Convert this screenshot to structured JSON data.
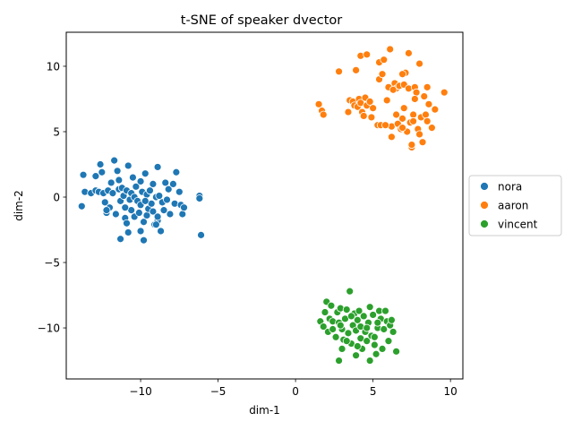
{
  "chart_data": {
    "type": "scatter",
    "title": "t-SNE of speaker dvector",
    "xlabel": "dim-1",
    "ylabel": "dim-2",
    "xlim": [
      -14.8,
      10.8
    ],
    "ylim": [
      -13.9,
      12.6
    ],
    "xticks": [
      -10,
      -5,
      0,
      5,
      10
    ],
    "yticks": [
      -10,
      -5,
      0,
      5,
      10
    ],
    "grid": false,
    "legend_position": "center-right-outside",
    "series": [
      {
        "name": "nora",
        "color": "#1f77b4",
        "points": [
          [
            -13.7,
            1.7
          ],
          [
            -13.8,
            -0.7
          ],
          [
            -13.6,
            0.4
          ],
          [
            -13.2,
            0.3
          ],
          [
            -12.9,
            0.5
          ],
          [
            -12.7,
            0.4
          ],
          [
            -12.9,
            1.6
          ],
          [
            -12.6,
            2.5
          ],
          [
            -12.5,
            1.9
          ],
          [
            -12.4,
            0.3
          ],
          [
            -12.3,
            -0.4
          ],
          [
            -12.2,
            -1.2
          ],
          [
            -12.1,
            0.5
          ],
          [
            -12.0,
            -0.8
          ],
          [
            -11.9,
            1.1
          ],
          [
            -11.8,
            0.3
          ],
          [
            -11.7,
            2.8
          ],
          [
            -11.6,
            -1.3
          ],
          [
            -11.5,
            2.0
          ],
          [
            -11.4,
            0.6
          ],
          [
            -11.4,
            1.3
          ],
          [
            -11.3,
            -0.3
          ],
          [
            -11.2,
            0.7
          ],
          [
            -11.1,
            0.1
          ],
          [
            -11.0,
            -1.6
          ],
          [
            -10.9,
            0.5
          ],
          [
            -10.8,
            2.4
          ],
          [
            -10.7,
            -0.2
          ],
          [
            -10.6,
            0.3
          ],
          [
            -10.6,
            -1.0
          ],
          [
            -10.5,
            1.5
          ],
          [
            -10.4,
            0.0
          ],
          [
            -10.4,
            -1.5
          ],
          [
            -10.3,
            0.8
          ],
          [
            -10.2,
            -0.3
          ],
          [
            -10.1,
            -1.2
          ],
          [
            -10.0,
            1.2
          ],
          [
            -10.0,
            -0.6
          ],
          [
            -9.9,
            0.4
          ],
          [
            -9.8,
            -1.9
          ],
          [
            -9.7,
            1.8
          ],
          [
            -9.6,
            0.2
          ],
          [
            -9.6,
            -1.4
          ],
          [
            -9.5,
            -0.9
          ],
          [
            -9.4,
            0.5
          ],
          [
            -9.3,
            -0.5
          ],
          [
            -9.2,
            -1.1
          ],
          [
            -9.2,
            1.0
          ],
          [
            -9.1,
            -2.1
          ],
          [
            -9.0,
            0.0
          ],
          [
            -8.9,
            2.3
          ],
          [
            -8.9,
            -1.8
          ],
          [
            -8.8,
            0.1
          ],
          [
            -8.7,
            -2.6
          ],
          [
            -8.6,
            -0.4
          ],
          [
            -8.5,
            -1.0
          ],
          [
            -8.4,
            1.1
          ],
          [
            -8.3,
            -0.2
          ],
          [
            -8.2,
            0.6
          ],
          [
            -8.1,
            -1.3
          ],
          [
            -7.9,
            1.0
          ],
          [
            -7.8,
            -0.5
          ],
          [
            -7.7,
            1.9
          ],
          [
            -7.5,
            0.4
          ],
          [
            -7.4,
            -0.6
          ],
          [
            -7.3,
            -1.3
          ],
          [
            -7.2,
            -0.8
          ],
          [
            -6.2,
            0.1
          ],
          [
            -6.2,
            -0.1
          ],
          [
            -6.1,
            -2.9
          ],
          [
            -11.3,
            -3.2
          ],
          [
            -10.8,
            -2.7
          ],
          [
            -9.8,
            -3.3
          ],
          [
            -9.0,
            -2.1
          ],
          [
            -10.0,
            -2.6
          ],
          [
            -12.2,
            -1.0
          ],
          [
            -11.0,
            -0.8
          ],
          [
            -9.7,
            -0.3
          ],
          [
            -8.9,
            -1.5
          ],
          [
            -10.9,
            -2.0
          ]
        ]
      },
      {
        "name": "aaron",
        "color": "#ff7f0e",
        "points": [
          [
            1.5,
            7.1
          ],
          [
            1.7,
            6.6
          ],
          [
            1.8,
            6.3
          ],
          [
            2.8,
            9.6
          ],
          [
            3.4,
            6.5
          ],
          [
            3.5,
            7.4
          ],
          [
            3.7,
            7.3
          ],
          [
            3.8,
            7.0
          ],
          [
            3.9,
            9.7
          ],
          [
            4.0,
            6.9
          ],
          [
            4.1,
            7.5
          ],
          [
            4.2,
            10.8
          ],
          [
            4.2,
            7.2
          ],
          [
            4.3,
            6.5
          ],
          [
            4.4,
            6.2
          ],
          [
            4.5,
            7.6
          ],
          [
            4.6,
            7.0
          ],
          [
            4.6,
            10.9
          ],
          [
            4.8,
            7.3
          ],
          [
            5.0,
            6.8
          ],
          [
            5.3,
            5.5
          ],
          [
            5.4,
            9.0
          ],
          [
            5.4,
            10.3
          ],
          [
            5.5,
            5.5
          ],
          [
            5.6,
            9.4
          ],
          [
            5.7,
            10.5
          ],
          [
            6.0,
            8.4
          ],
          [
            6.1,
            11.3
          ],
          [
            6.2,
            5.4
          ],
          [
            6.2,
            4.6
          ],
          [
            6.4,
            8.7
          ],
          [
            6.5,
            8.3
          ],
          [
            6.6,
            5.6
          ],
          [
            6.7,
            8.5
          ],
          [
            6.8,
            5.2
          ],
          [
            6.9,
            6.0
          ],
          [
            7.0,
            8.6
          ],
          [
            7.1,
            9.5
          ],
          [
            7.2,
            5.0
          ],
          [
            7.3,
            8.3
          ],
          [
            7.3,
            11.0
          ],
          [
            7.4,
            5.7
          ],
          [
            7.5,
            3.8
          ],
          [
            7.5,
            4.0
          ],
          [
            7.6,
            6.3
          ],
          [
            7.7,
            8.4
          ],
          [
            7.8,
            8.0
          ],
          [
            7.9,
            5.2
          ],
          [
            8.0,
            4.8
          ],
          [
            8.0,
            10.2
          ],
          [
            8.1,
            6.1
          ],
          [
            8.2,
            4.2
          ],
          [
            8.3,
            7.7
          ],
          [
            8.4,
            6.3
          ],
          [
            8.5,
            5.8
          ],
          [
            8.6,
            7.1
          ],
          [
            8.8,
            5.3
          ],
          [
            9.0,
            6.7
          ],
          [
            9.6,
            8.0
          ],
          [
            6.9,
            9.4
          ],
          [
            5.9,
            7.4
          ],
          [
            6.3,
            8.2
          ],
          [
            7.0,
            6.8
          ],
          [
            7.7,
            7.5
          ],
          [
            8.5,
            8.4
          ],
          [
            4.9,
            6.1
          ],
          [
            5.8,
            5.5
          ],
          [
            6.9,
            5.3
          ],
          [
            7.6,
            5.8
          ],
          [
            6.5,
            6.3
          ]
        ]
      },
      {
        "name": "vincent",
        "color": "#2ca02c",
        "points": [
          [
            1.6,
            -9.5
          ],
          [
            1.8,
            -9.9
          ],
          [
            1.9,
            -8.8
          ],
          [
            2.0,
            -8.0
          ],
          [
            2.1,
            -10.3
          ],
          [
            2.2,
            -9.3
          ],
          [
            2.3,
            -8.3
          ],
          [
            2.4,
            -9.5
          ],
          [
            2.6,
            -10.7
          ],
          [
            2.7,
            -8.8
          ],
          [
            2.8,
            -9.6
          ],
          [
            2.8,
            -12.5
          ],
          [
            2.9,
            -8.5
          ],
          [
            3.0,
            -10.1
          ],
          [
            3.0,
            -11.6
          ],
          [
            3.1,
            -10.9
          ],
          [
            3.2,
            -9.3
          ],
          [
            3.3,
            -8.6
          ],
          [
            3.4,
            -10.4
          ],
          [
            3.5,
            -7.2
          ],
          [
            3.6,
            -11.2
          ],
          [
            3.7,
            -9.8
          ],
          [
            3.8,
            -8.9
          ],
          [
            3.9,
            -10.2
          ],
          [
            3.9,
            -12.1
          ],
          [
            4.0,
            -9.4
          ],
          [
            4.1,
            -8.7
          ],
          [
            4.2,
            -10.8
          ],
          [
            4.3,
            -11.6
          ],
          [
            4.4,
            -9.1
          ],
          [
            4.5,
            -10.3
          ],
          [
            4.6,
            -11.0
          ],
          [
            4.7,
            -9.6
          ],
          [
            4.8,
            -12.5
          ],
          [
            4.8,
            -8.4
          ],
          [
            4.9,
            -10.6
          ],
          [
            5.0,
            -9.0
          ],
          [
            5.1,
            -11.3
          ],
          [
            5.2,
            -12.0
          ],
          [
            5.3,
            -10.0
          ],
          [
            5.4,
            -8.7
          ],
          [
            5.5,
            -9.3
          ],
          [
            5.6,
            -11.6
          ],
          [
            5.7,
            -10.1
          ],
          [
            5.8,
            -8.7
          ],
          [
            5.9,
            -9.5
          ],
          [
            6.0,
            -11.0
          ],
          [
            6.1,
            -9.8
          ],
          [
            6.2,
            -9.4
          ],
          [
            6.3,
            -10.3
          ],
          [
            6.5,
            -11.8
          ],
          [
            2.4,
            -10.1
          ],
          [
            3.3,
            -11.0
          ],
          [
            4.2,
            -9.9
          ],
          [
            5.1,
            -10.7
          ],
          [
            4.6,
            -10.0
          ],
          [
            3.6,
            -9.1
          ],
          [
            2.9,
            -9.8
          ],
          [
            4.0,
            -11.4
          ],
          [
            5.3,
            -9.6
          ]
        ]
      }
    ]
  }
}
